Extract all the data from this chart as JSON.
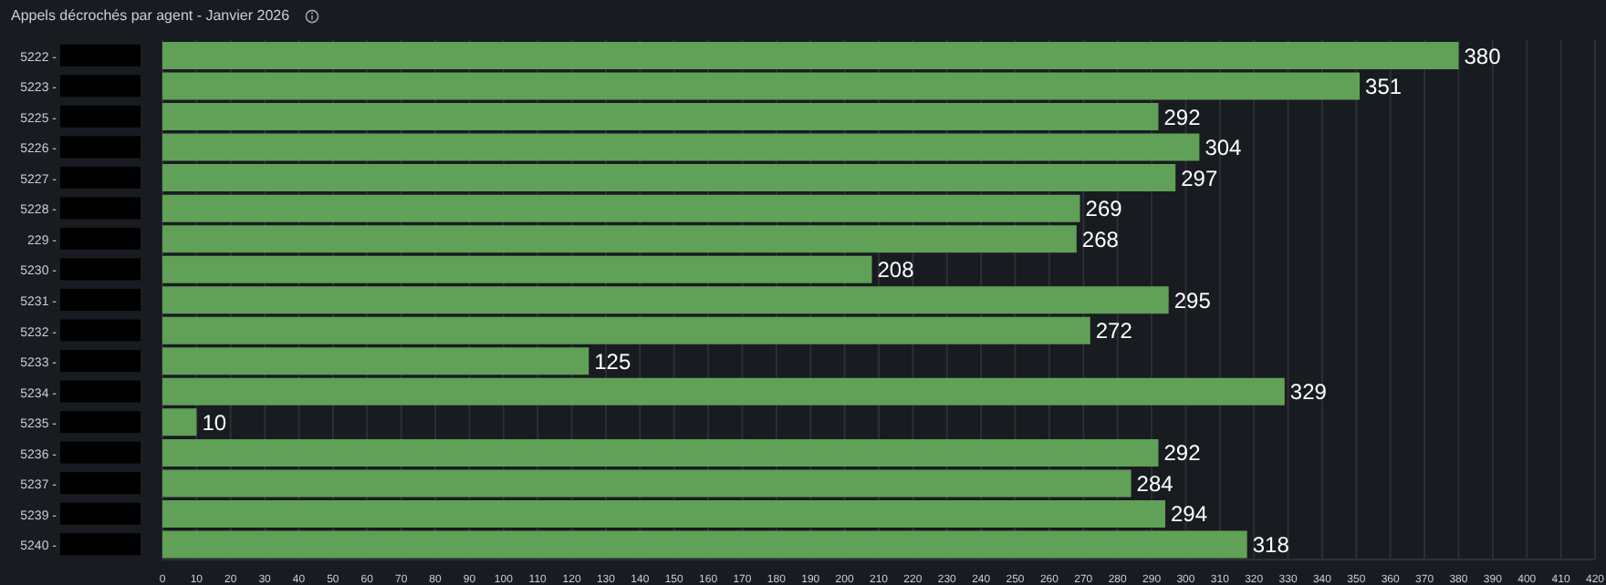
{
  "chart_data": {
    "type": "bar",
    "orientation": "horizontal",
    "title": "Appels décrochés par agent - Janvier 2026",
    "categories": [
      "5222 -",
      "5223 -",
      "5225 -",
      "5226 -",
      "5227 -",
      "5228 -",
      "229 -",
      "5230 -",
      "5231 -",
      "5232 -",
      "5233 -",
      "5234 -",
      "5235 -",
      "5236 -",
      "5237 -",
      "5239 -",
      "5240 -"
    ],
    "values": [
      380,
      351,
      292,
      304,
      297,
      269,
      268,
      208,
      295,
      272,
      125,
      329,
      10,
      292,
      284,
      294,
      318
    ],
    "color": "#61a057",
    "xlim": [
      0,
      420
    ],
    "xticks": [
      0,
      10,
      20,
      30,
      40,
      50,
      60,
      70,
      80,
      90,
      100,
      110,
      120,
      130,
      140,
      150,
      160,
      170,
      180,
      190,
      200,
      210,
      220,
      230,
      240,
      250,
      260,
      270,
      280,
      290,
      300,
      310,
      320,
      330,
      340,
      350,
      360,
      370,
      380,
      390,
      400,
      410,
      420
    ],
    "grid": "x",
    "data_labels": true,
    "legend": false
  }
}
